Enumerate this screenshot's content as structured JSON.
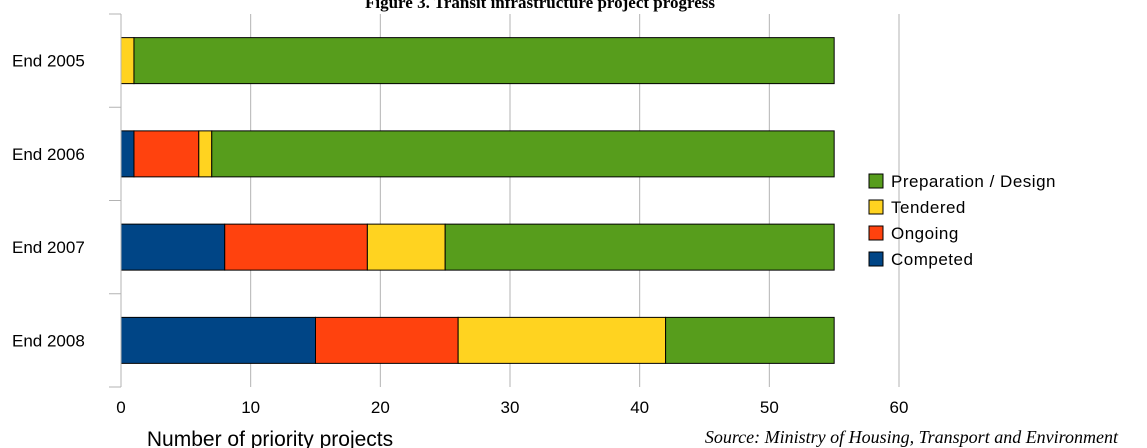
{
  "chart_data": {
    "type": "bar",
    "orientation": "horizontal",
    "stacked": true,
    "title": "Figure 3. Transit infrastructure project progress",
    "xlabel": "Number of priority projects",
    "ylabel": "",
    "xlim": [
      0,
      60
    ],
    "x_ticks": [
      "0",
      "10",
      "20",
      "30",
      "40",
      "50",
      "60"
    ],
    "categories": [
      "End 2005",
      "End 2006",
      "End 2007",
      "End 2008"
    ],
    "series": [
      {
        "name": "Competed",
        "color": "#004586",
        "values": [
          0,
          1,
          8,
          15
        ]
      },
      {
        "name": "Ongoing",
        "color": "#ff420e",
        "values": [
          0,
          5,
          11,
          11
        ]
      },
      {
        "name": "Tendered",
        "color": "#ffd320",
        "values": [
          1,
          1,
          6,
          16
        ]
      },
      {
        "name": "Preparation / Design",
        "color": "#579d1c",
        "values": [
          54,
          48,
          30,
          13
        ]
      }
    ],
    "legend_order": [
      "Preparation / Design",
      "Tendered",
      "Ongoing",
      "Competed"
    ],
    "legend_position": "right",
    "grid": "vertical",
    "source": "Source: Ministry of Housing, Transport and Environment"
  }
}
